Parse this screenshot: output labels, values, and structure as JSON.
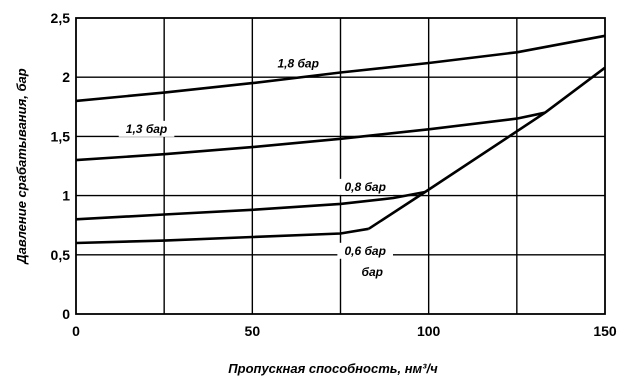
{
  "chart_data": {
    "type": "line",
    "xlabel": "Пропускная способность, нм³/ч",
    "ylabel": "Давление срабатывания, бар",
    "xlim": [
      0,
      150
    ],
    "ylim": [
      0,
      2.5
    ],
    "xticks": [
      "0",
      "50",
      "100",
      "150"
    ],
    "yticks": [
      "0",
      "0,5",
      "1",
      "1,5",
      "2",
      "2,5"
    ],
    "grid": true,
    "series": [
      {
        "name": "1,8 бар",
        "x": [
          0,
          25,
          50,
          75,
          100,
          125,
          150
        ],
        "y": [
          1.8,
          1.87,
          1.95,
          2.04,
          2.12,
          2.21,
          2.35
        ]
      },
      {
        "name": "1,3 бар",
        "x": [
          0,
          25,
          50,
          75,
          100,
          125,
          133
        ],
        "y": [
          1.3,
          1.35,
          1.41,
          1.48,
          1.56,
          1.65,
          1.7
        ]
      },
      {
        "name": "0,8 бар",
        "x": [
          0,
          25,
          50,
          75,
          90,
          99
        ],
        "y": [
          0.8,
          0.84,
          0.88,
          0.93,
          0.98,
          1.03
        ]
      },
      {
        "name": "0,6 бар",
        "x": [
          0,
          25,
          50,
          75,
          83
        ],
        "y": [
          0.6,
          0.62,
          0.65,
          0.68,
          0.72
        ]
      },
      {
        "name": "",
        "x": [
          83,
          99,
          133,
          150
        ],
        "y": [
          0.72,
          1.03,
          1.7,
          2.08
        ]
      }
    ],
    "annotations": [
      {
        "text": "1,8 бар",
        "x": 63,
        "y": 2.08
      },
      {
        "text": "1,3 бар",
        "x": 20,
        "y": 1.53
      },
      {
        "text": "0,8 бар",
        "x": 82,
        "y": 1.04
      },
      {
        "text": "0,6 бар",
        "x": 82,
        "y": 0.5
      },
      {
        "text": "бар",
        "x": 84,
        "y": 0.32
      }
    ]
  }
}
